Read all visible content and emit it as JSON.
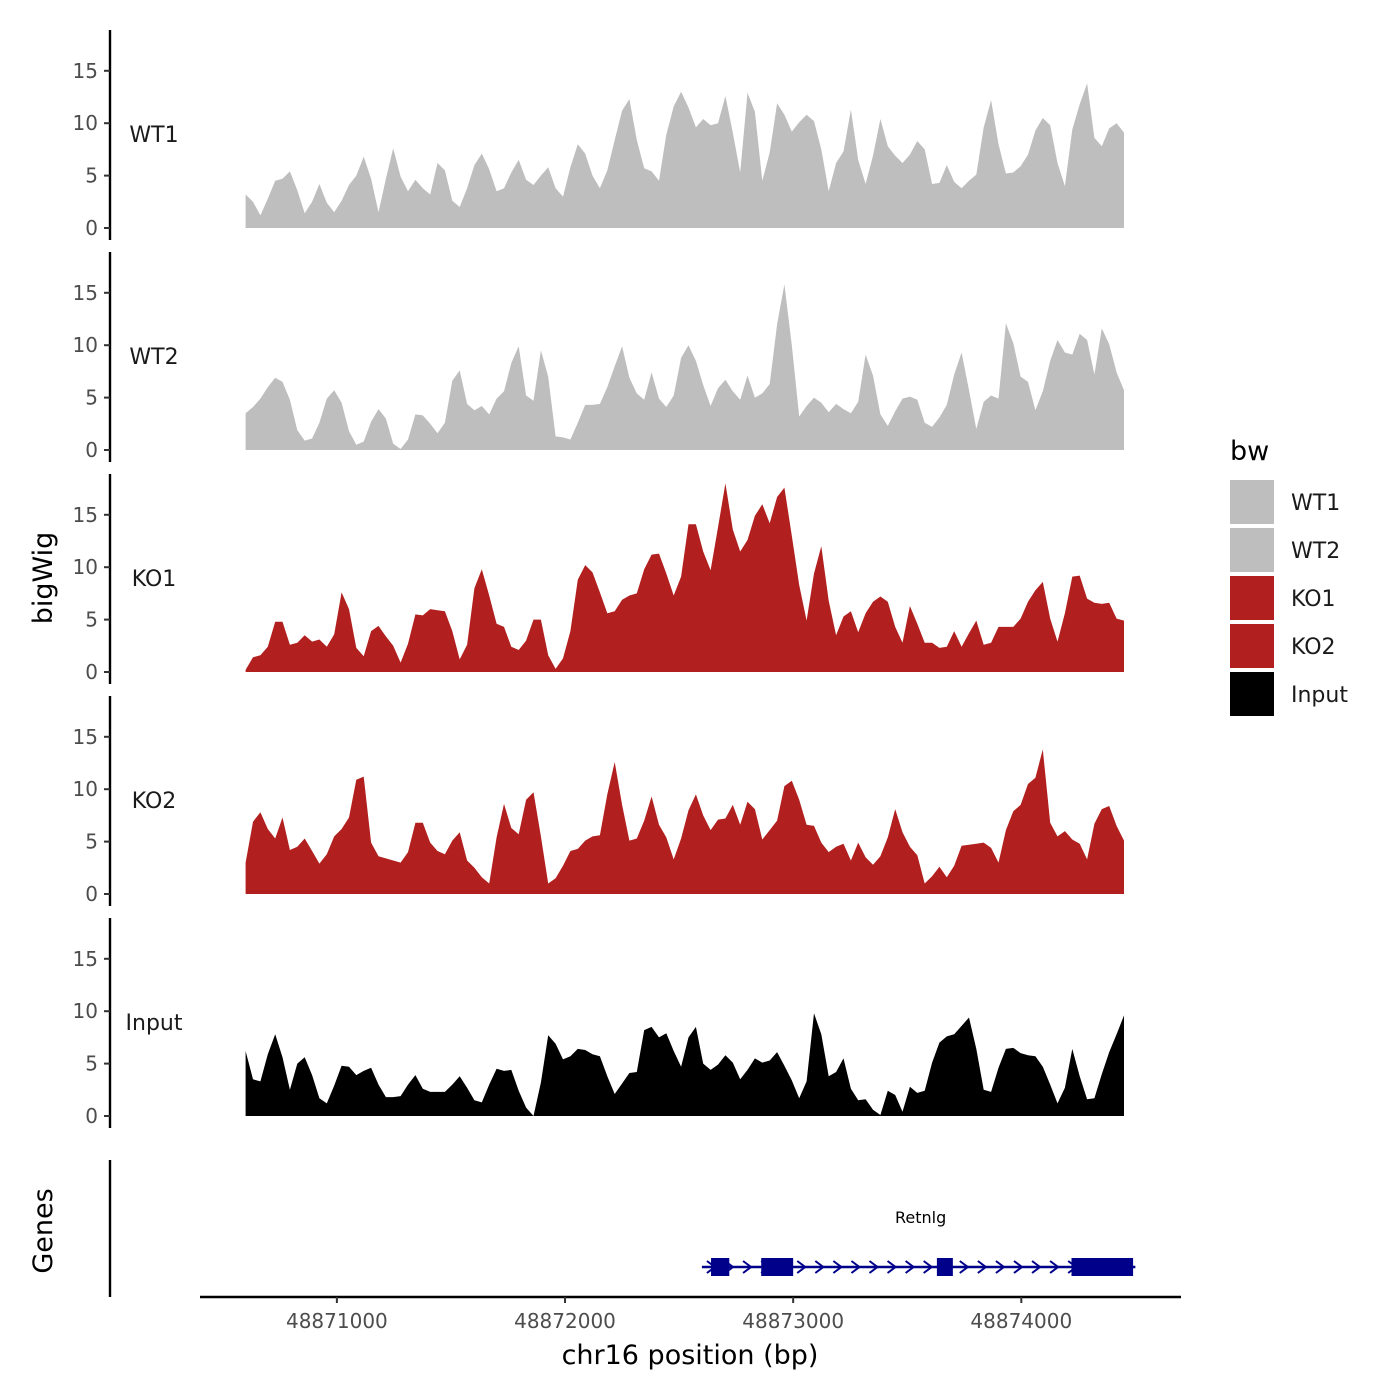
{
  "chart_data": {
    "type": "area",
    "title": "",
    "ylabel": "bigWig",
    "genes_label": "Genes",
    "xlabel": "chr16 position (bp)",
    "xlim": [
      48870400,
      48874700
    ],
    "ylim": [
      0,
      18.5
    ],
    "x_ticks": [
      48871000,
      48872000,
      48873000,
      48874000
    ],
    "x_tick_labels": [
      "48871000",
      "48872000",
      "48873000",
      "48874000"
    ],
    "y_ticks": [
      0,
      5,
      10,
      15
    ],
    "y_tick_labels": [
      "0",
      "5",
      "10",
      "15"
    ],
    "x_start": 48870600,
    "x_end": 48874450,
    "legend": {
      "title": "bw",
      "position": "right",
      "entries": [
        {
          "label": "WT1",
          "color": "#bebebe"
        },
        {
          "label": "WT2",
          "color": "#bebebe"
        },
        {
          "label": "KO1",
          "color": "#b21f1f"
        },
        {
          "label": "KO2",
          "color": "#b21f1f"
        },
        {
          "label": "Input",
          "color": "#000000"
        }
      ]
    },
    "series": [
      {
        "name": "WT1",
        "color": "#bebebe",
        "values": [
          3.2,
          2.5,
          1.2,
          2.8,
          4.5,
          4.7,
          5.4,
          3.6,
          1.4,
          2.5,
          4.2,
          2.4,
          1.5,
          2.6,
          4.1,
          5.0,
          6.8,
          4.7,
          1.5,
          4.7,
          7.6,
          4.9,
          3.5,
          4.6,
          3.8,
          3.2,
          6.2,
          5.5,
          2.6,
          2.0,
          3.8,
          6.0,
          7.1,
          5.6,
          3.5,
          3.8,
          5.3,
          6.5,
          4.6,
          4.1,
          5.0,
          5.8,
          3.8,
          3.0,
          5.8,
          8.0,
          7.1,
          5.0,
          3.8,
          5.5,
          8.4,
          11.2,
          12.3,
          8.4,
          5.7,
          5.4,
          4.5,
          8.9,
          11.6,
          13.0,
          11.5,
          9.6,
          10.4,
          9.8,
          10.0,
          12.6,
          9.1,
          5.3,
          12.9,
          11.1,
          4.5,
          7.2,
          11.9,
          10.8,
          9.2,
          10.1,
          10.8,
          10.2,
          7.5,
          3.5,
          6.2,
          7.3,
          11.3,
          6.5,
          4.2,
          6.9,
          10.4,
          7.8,
          6.9,
          6.2,
          7.0,
          8.3,
          7.5,
          4.2,
          4.3,
          6.0,
          4.4,
          3.8,
          4.5,
          5.1,
          9.6,
          12.2,
          8.0,
          5.2,
          5.3,
          5.9,
          7.0,
          9.3,
          10.5,
          9.8,
          6.2,
          4.0,
          9.4,
          11.8,
          13.8,
          8.6,
          7.8,
          9.5,
          10.0,
          9.1
        ]
      },
      {
        "name": "WT2",
        "color": "#bebebe",
        "values": [
          3.5,
          4.1,
          4.9,
          6.0,
          6.9,
          6.5,
          4.8,
          1.9,
          0.9,
          1.1,
          2.6,
          4.9,
          5.7,
          4.5,
          1.8,
          0.5,
          0.8,
          2.7,
          3.9,
          3.0,
          0.6,
          0.1,
          1.0,
          3.4,
          3.3,
          2.5,
          1.6,
          2.6,
          6.6,
          7.6,
          4.4,
          3.8,
          4.2,
          3.4,
          4.9,
          5.6,
          8.3,
          9.9,
          5.2,
          4.7,
          9.5,
          7.0,
          1.3,
          1.2,
          1.0,
          2.6,
          4.3,
          4.3,
          4.4,
          6.0,
          8.0,
          9.9,
          6.9,
          5.4,
          4.8,
          7.4,
          4.9,
          4.1,
          5.2,
          8.8,
          10.0,
          8.5,
          6.2,
          4.2,
          5.9,
          6.7,
          5.6,
          4.8,
          7.1,
          5.0,
          5.4,
          6.3,
          12.0,
          15.8,
          10.0,
          3.2,
          4.2,
          5.0,
          4.5,
          3.6,
          4.4,
          3.9,
          3.5,
          4.6,
          9.1,
          7.1,
          3.4,
          2.3,
          3.7,
          4.9,
          5.1,
          4.8,
          2.6,
          2.2,
          3.1,
          4.3,
          7.2,
          9.3,
          5.7,
          2.0,
          4.6,
          5.2,
          4.9,
          12.1,
          10.2,
          7.0,
          6.5,
          3.8,
          5.6,
          8.5,
          10.5,
          9.3,
          9.1,
          11.1,
          10.5,
          7.2,
          11.6,
          10.1,
          7.4,
          5.7
        ]
      },
      {
        "name": "KO1",
        "color": "#b21f1f",
        "values": [
          0.2,
          1.4,
          1.6,
          2.4,
          4.8,
          4.8,
          2.6,
          2.8,
          3.5,
          2.9,
          3.1,
          2.4,
          3.6,
          7.6,
          6.0,
          2.3,
          1.5,
          3.9,
          4.4,
          3.4,
          2.5,
          0.9,
          2.7,
          5.5,
          5.4,
          6.0,
          5.9,
          5.8,
          3.9,
          1.2,
          2.6,
          8.0,
          9.8,
          7.3,
          4.6,
          4.3,
          2.4,
          2.1,
          3.0,
          5.0,
          5.0,
          1.6,
          0.3,
          1.3,
          3.9,
          8.8,
          10.2,
          9.5,
          7.6,
          5.6,
          5.8,
          6.9,
          7.3,
          7.5,
          9.8,
          11.2,
          11.3,
          9.4,
          7.3,
          9.1,
          14.1,
          14.1,
          11.5,
          9.7,
          13.8,
          18.0,
          13.6,
          11.5,
          12.6,
          14.9,
          16.0,
          14.2,
          16.7,
          17.6,
          13.0,
          8.3,
          4.9,
          9.4,
          12.0,
          6.8,
          3.5,
          5.3,
          5.8,
          3.8,
          5.6,
          6.7,
          7.2,
          6.7,
          4.3,
          2.8,
          6.3,
          4.6,
          2.8,
          2.8,
          2.3,
          2.4,
          3.9,
          2.4,
          3.7,
          4.9,
          2.6,
          2.8,
          4.3,
          4.3,
          4.3,
          5.1,
          6.7,
          7.8,
          8.6,
          5.1,
          2.9,
          5.6,
          9.1,
          9.2,
          7.0,
          6.6,
          6.5,
          6.6,
          5.1,
          4.9
        ]
      },
      {
        "name": "KO2",
        "color": "#b21f1f",
        "values": [
          3.0,
          6.9,
          7.8,
          6.2,
          5.3,
          7.3,
          4.2,
          4.5,
          5.3,
          4.1,
          2.9,
          3.8,
          5.5,
          6.2,
          7.3,
          10.9,
          11.2,
          4.9,
          3.6,
          3.4,
          3.2,
          3.0,
          4.0,
          6.8,
          6.8,
          4.9,
          4.1,
          3.8,
          5.1,
          5.9,
          3.2,
          2.5,
          1.6,
          1.0,
          5.4,
          8.6,
          6.3,
          5.7,
          9.0,
          9.7,
          5.5,
          1.0,
          1.5,
          2.7,
          4.1,
          4.3,
          5.1,
          5.5,
          5.6,
          9.5,
          12.6,
          8.5,
          5.1,
          5.3,
          7.0,
          9.3,
          6.6,
          5.4,
          3.3,
          5.3,
          8.0,
          9.5,
          7.5,
          6.1,
          7.1,
          7.2,
          8.5,
          6.6,
          8.8,
          8.1,
          5.2,
          6.1,
          7.0,
          10.3,
          10.8,
          9.0,
          6.6,
          6.5,
          4.9,
          4.0,
          4.5,
          4.8,
          3.2,
          4.9,
          3.5,
          2.8,
          3.6,
          5.4,
          8.1,
          5.9,
          4.5,
          3.7,
          1.0,
          1.7,
          2.6,
          1.6,
          2.7,
          4.6,
          4.7,
          4.8,
          4.9,
          4.4,
          3.0,
          6.1,
          7.9,
          8.5,
          10.5,
          11.1,
          13.8,
          6.8,
          5.5,
          6.0,
          5.2,
          4.8,
          3.3,
          6.7,
          8.1,
          8.4,
          6.5,
          5.1
        ]
      },
      {
        "name": "Input",
        "color": "#000000",
        "values": [
          6.2,
          3.5,
          3.3,
          5.9,
          7.8,
          5.6,
          2.5,
          5.0,
          5.6,
          3.9,
          1.7,
          1.2,
          2.9,
          4.8,
          4.7,
          3.9,
          4.3,
          4.6,
          3.0,
          1.8,
          1.8,
          1.9,
          3.0,
          3.9,
          2.6,
          2.3,
          2.3,
          2.3,
          3.0,
          3.8,
          2.7,
          1.5,
          1.3,
          3.0,
          4.5,
          4.3,
          4.4,
          2.4,
          0.8,
          0.0,
          3.2,
          7.7,
          6.9,
          5.4,
          5.7,
          6.4,
          6.3,
          5.9,
          5.7,
          3.8,
          2.1,
          3.1,
          4.1,
          4.2,
          8.2,
          8.5,
          7.5,
          7.9,
          6.2,
          4.7,
          7.5,
          8.5,
          5.0,
          4.4,
          4.9,
          5.8,
          5.1,
          3.5,
          4.4,
          5.5,
          5.1,
          5.3,
          6.1,
          4.8,
          3.4,
          1.7,
          3.3,
          9.8,
          7.8,
          3.8,
          4.2,
          5.5,
          2.6,
          1.5,
          1.6,
          0.6,
          0.1,
          2.4,
          2.0,
          0.4,
          2.8,
          2.2,
          2.4,
          5.1,
          7.0,
          7.6,
          7.8,
          8.6,
          9.4,
          6.4,
          2.5,
          2.3,
          4.6,
          6.4,
          6.5,
          6.0,
          5.8,
          5.7,
          4.7,
          3.0,
          1.2,
          2.7,
          6.4,
          3.8,
          1.6,
          1.7,
          4.0,
          6.1,
          7.8,
          9.6
        ]
      }
    ],
    "gene": {
      "name": "Retnlg",
      "strand": "+",
      "color": "#00008b",
      "start": 48872600,
      "end": 48874500,
      "exons": [
        [
          48872640,
          48872720
        ],
        [
          48872860,
          48873000
        ],
        [
          48873630,
          48873700
        ],
        [
          48874220,
          48874490
        ]
      ]
    }
  }
}
